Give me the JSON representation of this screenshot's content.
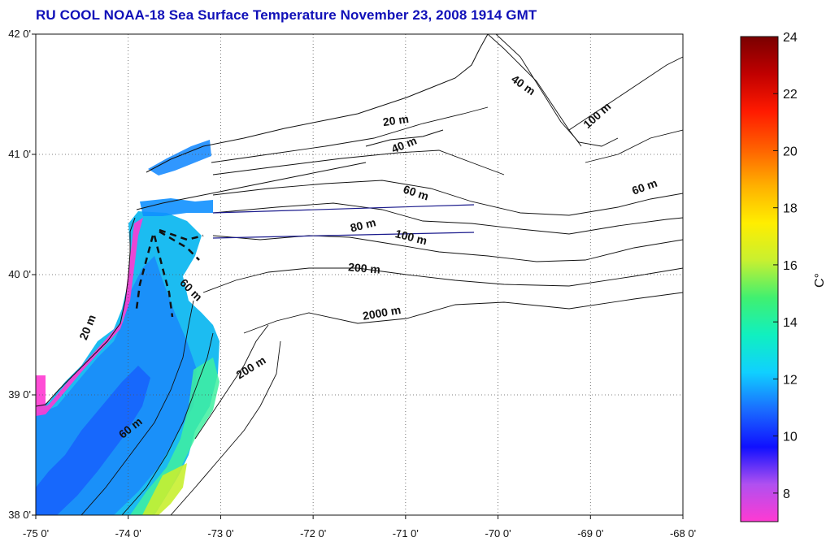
{
  "title": "RU COOL  NOAA-18 Sea Surface Temperature November 23, 2008 1914 GMT",
  "map": {
    "lon_range": [
      -75,
      -68
    ],
    "lat_range": [
      38,
      42
    ],
    "lon_ticks": [
      {
        "value": -75,
        "label": "-75 0'"
      },
      {
        "value": -74,
        "label": "-74 0'"
      },
      {
        "value": -73,
        "label": "-73 0'"
      },
      {
        "value": -72,
        "label": "-72 0'"
      },
      {
        "value": -71,
        "label": "-71 0'"
      },
      {
        "value": -70,
        "label": "-70 0'"
      },
      {
        "value": -69,
        "label": "-69 0'"
      },
      {
        "value": -68,
        "label": "-68 0'"
      }
    ],
    "lat_ticks": [
      {
        "value": 42,
        "label": "42 0'"
      },
      {
        "value": 41,
        "label": "41 0'"
      },
      {
        "value": 40,
        "label": "40 0'"
      },
      {
        "value": 39,
        "label": "39 0'"
      },
      {
        "value": 38,
        "label": "38 0'"
      }
    ],
    "grid": "dotted",
    "depth_labels": [
      {
        "text": "20 m",
        "lon": -71.1,
        "lat": 41.25,
        "rotate": -8
      },
      {
        "text": "40 m",
        "lon": -71.0,
        "lat": 41.05,
        "rotate": -22
      },
      {
        "text": "40 m",
        "lon": -69.75,
        "lat": 41.55,
        "rotate": 35
      },
      {
        "text": "100 m",
        "lon": -68.9,
        "lat": 41.3,
        "rotate": -42
      },
      {
        "text": "60 m",
        "lon": -68.4,
        "lat": 40.7,
        "rotate": -20
      },
      {
        "text": "60 m",
        "lon": -70.9,
        "lat": 40.65,
        "rotate": 18
      },
      {
        "text": "80 m",
        "lon": -71.45,
        "lat": 40.38,
        "rotate": -14
      },
      {
        "text": "100 m",
        "lon": -70.95,
        "lat": 40.28,
        "rotate": 14
      },
      {
        "text": "200 m",
        "lon": -71.45,
        "lat": 40.02,
        "rotate": 5
      },
      {
        "text": "2000 m",
        "lon": -71.25,
        "lat": 39.65,
        "rotate": -10
      },
      {
        "text": "200 m",
        "lon": -72.65,
        "lat": 39.2,
        "rotate": -32
      },
      {
        "text": "60 m",
        "lon": -73.35,
        "lat": 39.85,
        "rotate": 45
      },
      {
        "text": "20 m",
        "lon": -74.4,
        "lat": 39.55,
        "rotate": -68
      },
      {
        "text": "60 m",
        "lon": -73.95,
        "lat": 38.7,
        "rotate": -38
      }
    ]
  },
  "colorbar": {
    "range": [
      7,
      24
    ],
    "ticks": [
      8,
      10,
      12,
      14,
      16,
      18,
      20,
      22,
      24
    ],
    "unit": "C°",
    "colors": [
      "#ff3ad2",
      "#b050f0",
      "#1010ff",
      "#1a6cff",
      "#10d0ff",
      "#10f0c0",
      "#40f070",
      "#c8f030",
      "#ffee00",
      "#ffb000",
      "#ff6000",
      "#ff1a00",
      "#c00000",
      "#7a0000"
    ]
  },
  "colors": {
    "land": "#ffffff",
    "contour": "#111111",
    "transect": "#1a1a8c",
    "title": "#1010b8"
  }
}
